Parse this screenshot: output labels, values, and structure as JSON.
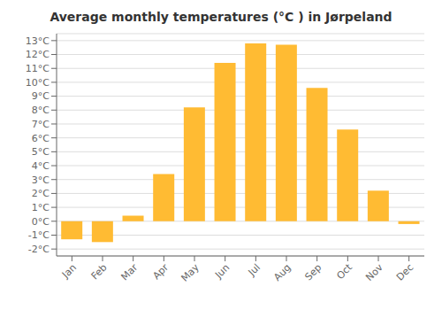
{
  "chart_data": {
    "type": "bar",
    "title": "Average monthly temperatures (°C ) in Jørpeland",
    "categories": [
      "Jan",
      "Feb",
      "Mar",
      "Apr",
      "May",
      "Jun",
      "Jul",
      "Aug",
      "Sep",
      "Oct",
      "Nov",
      "Dec"
    ],
    "values": [
      -1.3,
      -1.5,
      0.4,
      3.4,
      8.2,
      11.4,
      12.8,
      12.7,
      9.6,
      6.6,
      2.2,
      -0.2
    ],
    "color": "#FFBB33",
    "ylim": [
      -2.5,
      13.5
    ],
    "yticks": [
      {
        "value": -2,
        "label": "-2°C"
      },
      {
        "value": -1,
        "label": "-1°C"
      },
      {
        "value": 0,
        "label": "0°C"
      },
      {
        "value": 1,
        "label": "1°C"
      },
      {
        "value": 2,
        "label": "2°C"
      },
      {
        "value": 3,
        "label": "3°C"
      },
      {
        "value": 4,
        "label": "4°C"
      },
      {
        "value": 5,
        "label": "5°C"
      },
      {
        "value": 6,
        "label": "6°C"
      },
      {
        "value": 7,
        "label": "7°C"
      },
      {
        "value": 8,
        "label": "8°C"
      },
      {
        "value": 9,
        "label": "9°C"
      },
      {
        "value": 10,
        "label": "10°C"
      },
      {
        "value": 11,
        "label": "11°C"
      },
      {
        "value": 12,
        "label": "12°C"
      },
      {
        "value": 13,
        "label": "13°C"
      }
    ],
    "grid": true
  }
}
